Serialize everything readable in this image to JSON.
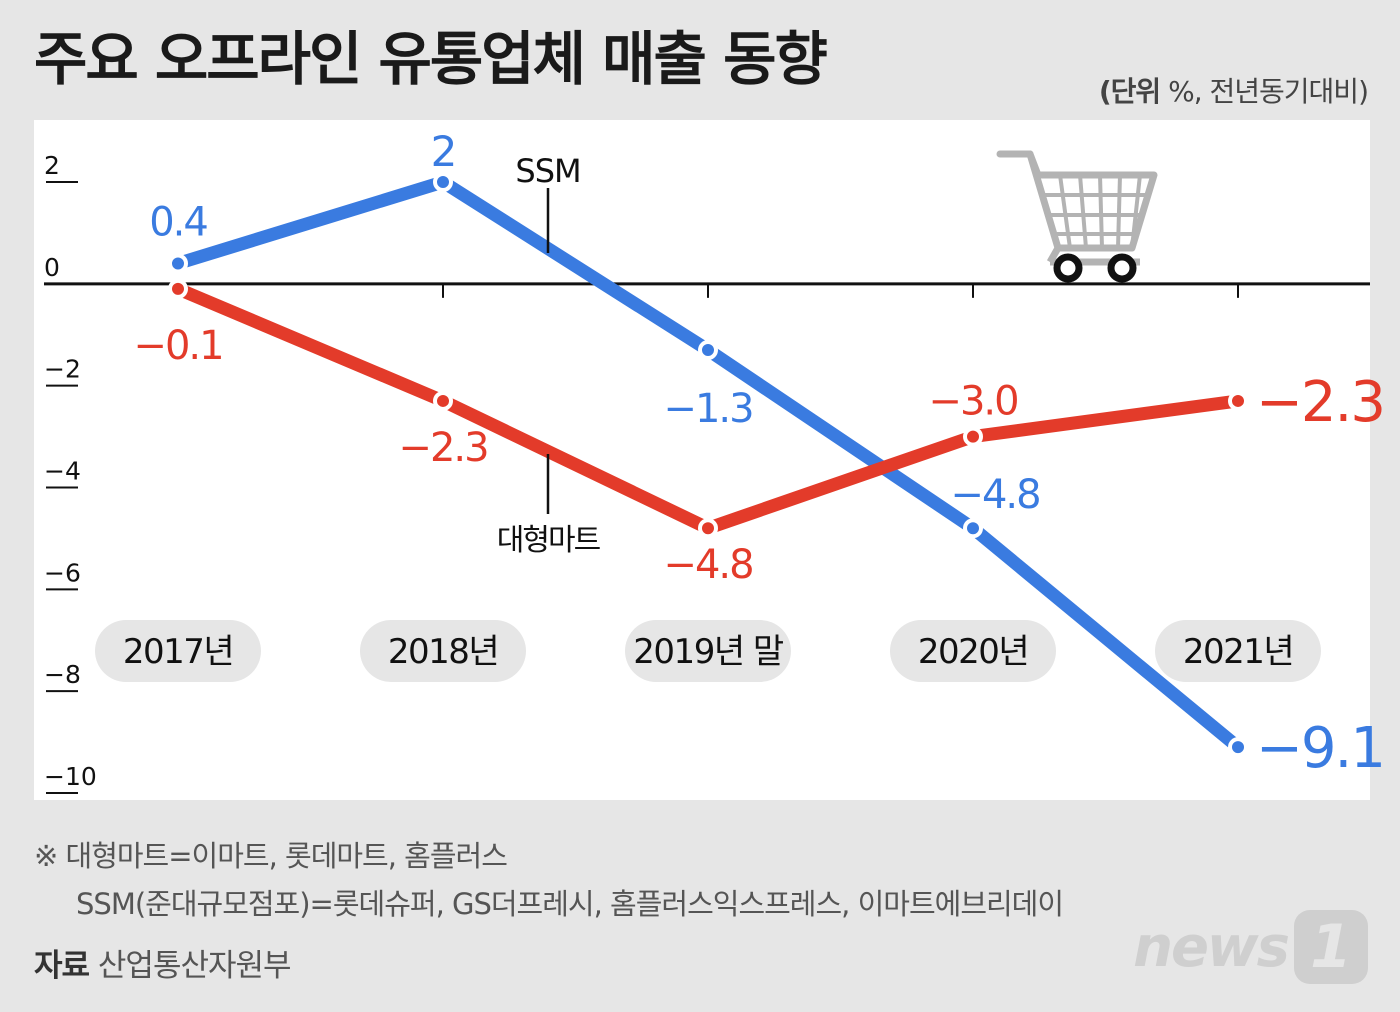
{
  "title": "주요 오프라인 유통업체 매출 동향",
  "unit_label": "(단위",
  "unit_rest": " %, 전년동기대비)",
  "notes": {
    "line1": "※ 대형마트=이마트, 롯데마트, 홈플러스",
    "line2": "SSM(준대규모점포)=롯데슈퍼, GS더프레시, 홈플러스익스프레스, 이마트에브리데이"
  },
  "source": {
    "label": "자료",
    "value": "산업통산자원부"
  },
  "logo": {
    "text": "news",
    "badge": "1"
  },
  "icons": {
    "cart": "shopping-cart-icon"
  },
  "colors": {
    "ssm": "#3a7be0",
    "mart": "#e33b2a",
    "axis": "#111111",
    "pill": "#e6e6e6"
  },
  "chart_data": {
    "type": "line",
    "categories": [
      "2017년",
      "2018년",
      "2019년 말",
      "2020년",
      "2021년"
    ],
    "ylim": [
      -10,
      2
    ],
    "yticks": [
      2,
      0,
      -2,
      -4,
      -6,
      -8,
      -10
    ],
    "ytick_labels": [
      "2",
      "0",
      "−2",
      "−4",
      "−6",
      "−8",
      "−10"
    ],
    "series": [
      {
        "name": "SSM",
        "values": [
          0.4,
          2,
          -1.3,
          -4.8,
          -9.1
        ],
        "labels": [
          "0.4",
          "2",
          "−1.3",
          "−4.8",
          "−9.1"
        ]
      },
      {
        "name": "대형마트",
        "values": [
          -0.1,
          -2.3,
          -4.8,
          -3.0,
          -2.3
        ],
        "labels": [
          "−0.1",
          "−2.3",
          "−4.8",
          "−3.0",
          "−2.3"
        ]
      }
    ]
  }
}
